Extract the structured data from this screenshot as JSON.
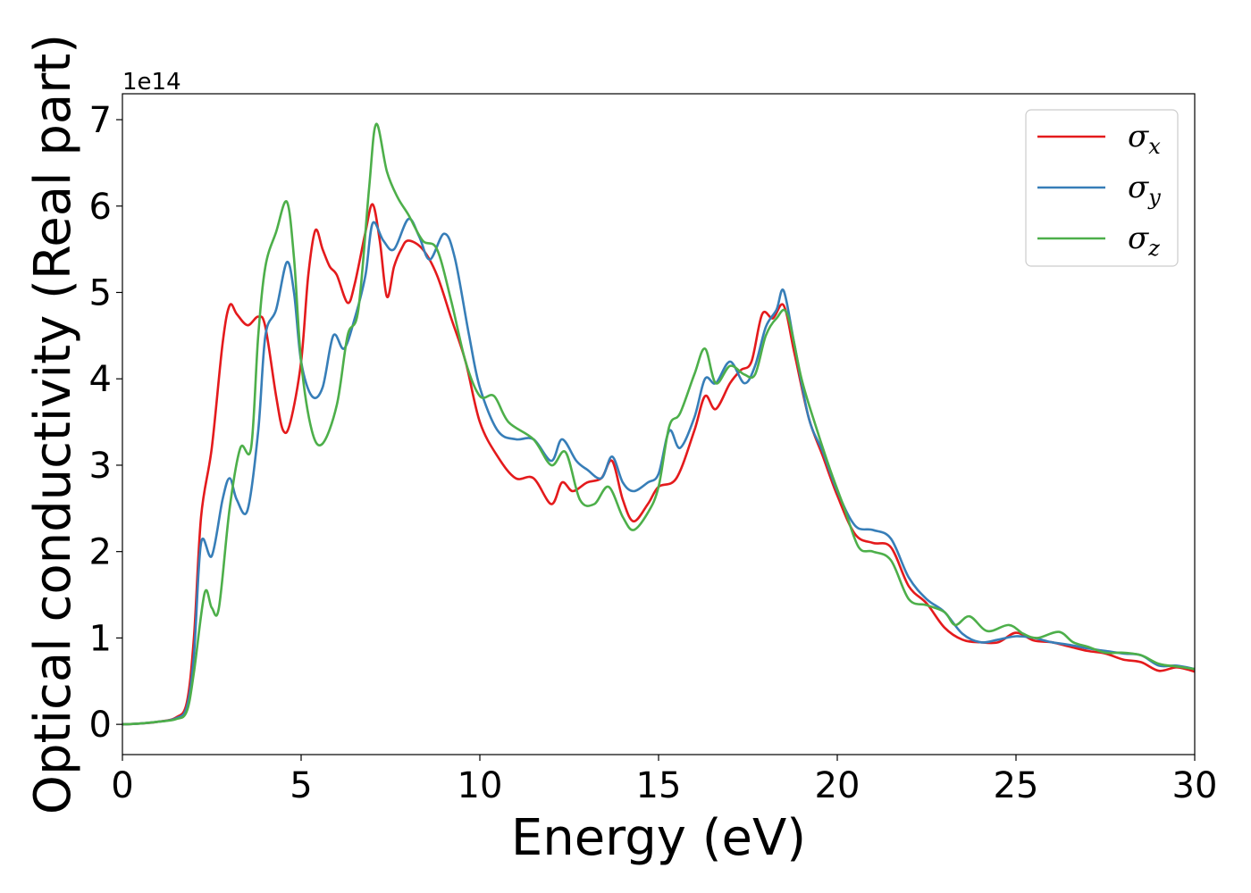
{
  "chart_data": {
    "type": "line",
    "title": "",
    "xlabel": "Energy (eV)",
    "ylabel": "Optical conductivity (Real part)",
    "y_offset_label": "1e14",
    "xlim": [
      0,
      30
    ],
    "ylim": [
      -0.35,
      7.3
    ],
    "x_ticks": [
      0,
      5,
      10,
      15,
      20,
      25,
      30
    ],
    "y_ticks": [
      0,
      1,
      2,
      3,
      4,
      5,
      6,
      7
    ],
    "grid": false,
    "legend_position": "top-right",
    "series": [
      {
        "name": "σx",
        "symbol": "σ",
        "subscript": "x",
        "color": "#e41a1c",
        "points": [
          [
            0,
            0
          ],
          [
            0.5,
            0.01
          ],
          [
            1.0,
            0.03
          ],
          [
            1.5,
            0.08
          ],
          [
            1.8,
            0.25
          ],
          [
            2.0,
            1.0
          ],
          [
            2.2,
            2.4
          ],
          [
            2.5,
            3.2
          ],
          [
            2.8,
            4.4
          ],
          [
            3.0,
            4.85
          ],
          [
            3.2,
            4.75
          ],
          [
            3.5,
            4.62
          ],
          [
            3.8,
            4.72
          ],
          [
            4.0,
            4.6
          ],
          [
            4.3,
            3.8
          ],
          [
            4.5,
            3.4
          ],
          [
            4.7,
            3.5
          ],
          [
            5.0,
            4.2
          ],
          [
            5.2,
            5.2
          ],
          [
            5.4,
            5.72
          ],
          [
            5.6,
            5.5
          ],
          [
            5.8,
            5.3
          ],
          [
            6.0,
            5.2
          ],
          [
            6.3,
            4.88
          ],
          [
            6.5,
            5.1
          ],
          [
            6.8,
            5.7
          ],
          [
            7.0,
            6.02
          ],
          [
            7.2,
            5.6
          ],
          [
            7.4,
            4.95
          ],
          [
            7.6,
            5.3
          ],
          [
            7.8,
            5.5
          ],
          [
            8.0,
            5.6
          ],
          [
            8.4,
            5.5
          ],
          [
            8.8,
            5.2
          ],
          [
            9.2,
            4.7
          ],
          [
            9.6,
            4.2
          ],
          [
            10.0,
            3.5
          ],
          [
            10.5,
            3.1
          ],
          [
            11.0,
            2.85
          ],
          [
            11.5,
            2.85
          ],
          [
            12.0,
            2.55
          ],
          [
            12.3,
            2.8
          ],
          [
            12.6,
            2.7
          ],
          [
            13.0,
            2.8
          ],
          [
            13.4,
            2.85
          ],
          [
            13.7,
            3.05
          ],
          [
            14.0,
            2.6
          ],
          [
            14.3,
            2.35
          ],
          [
            14.7,
            2.55
          ],
          [
            15.0,
            2.75
          ],
          [
            15.5,
            2.85
          ],
          [
            16.0,
            3.4
          ],
          [
            16.3,
            3.8
          ],
          [
            16.6,
            3.65
          ],
          [
            17.0,
            3.95
          ],
          [
            17.3,
            4.1
          ],
          [
            17.6,
            4.2
          ],
          [
            17.9,
            4.75
          ],
          [
            18.2,
            4.7
          ],
          [
            18.5,
            4.85
          ],
          [
            18.8,
            4.3
          ],
          [
            19.2,
            3.55
          ],
          [
            19.6,
            3.1
          ],
          [
            20.0,
            2.65
          ],
          [
            20.5,
            2.2
          ],
          [
            21.0,
            2.1
          ],
          [
            21.5,
            2.05
          ],
          [
            22.0,
            1.6
          ],
          [
            22.5,
            1.4
          ],
          [
            23.0,
            1.12
          ],
          [
            23.5,
            0.98
          ],
          [
            24.0,
            0.95
          ],
          [
            24.5,
            0.95
          ],
          [
            25.0,
            1.06
          ],
          [
            25.5,
            0.97
          ],
          [
            26.0,
            0.95
          ],
          [
            26.5,
            0.9
          ],
          [
            27.0,
            0.85
          ],
          [
            27.5,
            0.82
          ],
          [
            28.0,
            0.75
          ],
          [
            28.5,
            0.72
          ],
          [
            29.0,
            0.62
          ],
          [
            29.5,
            0.66
          ],
          [
            30.0,
            0.61
          ]
        ]
      },
      {
        "name": "σy",
        "symbol": "σ",
        "subscript": "y",
        "color": "#377eb8",
        "points": [
          [
            0,
            0
          ],
          [
            0.5,
            0.01
          ],
          [
            1.0,
            0.03
          ],
          [
            1.5,
            0.07
          ],
          [
            1.8,
            0.2
          ],
          [
            2.0,
            0.8
          ],
          [
            2.2,
            2.1
          ],
          [
            2.5,
            1.95
          ],
          [
            2.8,
            2.6
          ],
          [
            3.0,
            2.85
          ],
          [
            3.2,
            2.6
          ],
          [
            3.5,
            2.48
          ],
          [
            3.8,
            3.4
          ],
          [
            4.0,
            4.5
          ],
          [
            4.3,
            4.8
          ],
          [
            4.6,
            5.35
          ],
          [
            4.8,
            5.0
          ],
          [
            5.0,
            4.2
          ],
          [
            5.3,
            3.8
          ],
          [
            5.6,
            3.9
          ],
          [
            5.9,
            4.5
          ],
          [
            6.2,
            4.35
          ],
          [
            6.5,
            4.7
          ],
          [
            6.8,
            5.2
          ],
          [
            7.0,
            5.8
          ],
          [
            7.3,
            5.6
          ],
          [
            7.6,
            5.5
          ],
          [
            8.0,
            5.85
          ],
          [
            8.3,
            5.65
          ],
          [
            8.6,
            5.38
          ],
          [
            9.0,
            5.68
          ],
          [
            9.3,
            5.4
          ],
          [
            9.7,
            4.5
          ],
          [
            10.0,
            3.9
          ],
          [
            10.5,
            3.4
          ],
          [
            11.0,
            3.3
          ],
          [
            11.5,
            3.3
          ],
          [
            12.0,
            3.05
          ],
          [
            12.3,
            3.3
          ],
          [
            12.7,
            3.05
          ],
          [
            13.0,
            2.95
          ],
          [
            13.4,
            2.85
          ],
          [
            13.7,
            3.1
          ],
          [
            14.0,
            2.8
          ],
          [
            14.3,
            2.7
          ],
          [
            14.7,
            2.8
          ],
          [
            15.0,
            2.9
          ],
          [
            15.3,
            3.4
          ],
          [
            15.6,
            3.2
          ],
          [
            16.0,
            3.55
          ],
          [
            16.3,
            4.0
          ],
          [
            16.6,
            3.95
          ],
          [
            17.0,
            4.2
          ],
          [
            17.4,
            3.95
          ],
          [
            17.7,
            4.15
          ],
          [
            18.0,
            4.6
          ],
          [
            18.3,
            4.8
          ],
          [
            18.5,
            5.02
          ],
          [
            18.8,
            4.4
          ],
          [
            19.2,
            3.55
          ],
          [
            19.6,
            3.15
          ],
          [
            20.0,
            2.7
          ],
          [
            20.5,
            2.3
          ],
          [
            21.0,
            2.25
          ],
          [
            21.5,
            2.15
          ],
          [
            22.0,
            1.7
          ],
          [
            22.5,
            1.45
          ],
          [
            23.0,
            1.3
          ],
          [
            23.5,
            1.05
          ],
          [
            24.0,
            0.95
          ],
          [
            24.5,
            0.98
          ],
          [
            25.0,
            1.02
          ],
          [
            25.5,
            1.0
          ],
          [
            26.0,
            0.95
          ],
          [
            26.5,
            0.92
          ],
          [
            27.0,
            0.88
          ],
          [
            27.5,
            0.85
          ],
          [
            28.0,
            0.82
          ],
          [
            28.5,
            0.8
          ],
          [
            29.0,
            0.68
          ],
          [
            29.5,
            0.68
          ],
          [
            30.0,
            0.64
          ]
        ]
      },
      {
        "name": "σz",
        "symbol": "σ",
        "subscript": "z",
        "color": "#4daf4a",
        "points": [
          [
            0,
            0
          ],
          [
            0.5,
            0.01
          ],
          [
            1.0,
            0.03
          ],
          [
            1.5,
            0.06
          ],
          [
            1.8,
            0.15
          ],
          [
            2.0,
            0.6
          ],
          [
            2.3,
            1.52
          ],
          [
            2.5,
            1.35
          ],
          [
            2.7,
            1.35
          ],
          [
            3.0,
            2.5
          ],
          [
            3.3,
            3.2
          ],
          [
            3.6,
            3.2
          ],
          [
            3.8,
            4.5
          ],
          [
            4.0,
            5.3
          ],
          [
            4.3,
            5.7
          ],
          [
            4.6,
            6.05
          ],
          [
            4.8,
            5.4
          ],
          [
            5.0,
            4.2
          ],
          [
            5.3,
            3.4
          ],
          [
            5.6,
            3.25
          ],
          [
            6.0,
            3.7
          ],
          [
            6.3,
            4.5
          ],
          [
            6.6,
            4.8
          ],
          [
            6.9,
            6.2
          ],
          [
            7.1,
            6.95
          ],
          [
            7.4,
            6.4
          ],
          [
            7.7,
            6.1
          ],
          [
            8.0,
            5.9
          ],
          [
            8.4,
            5.6
          ],
          [
            8.8,
            5.5
          ],
          [
            9.2,
            4.9
          ],
          [
            9.6,
            4.2
          ],
          [
            10.0,
            3.8
          ],
          [
            10.4,
            3.8
          ],
          [
            10.8,
            3.5
          ],
          [
            11.5,
            3.3
          ],
          [
            12.0,
            3.0
          ],
          [
            12.4,
            3.15
          ],
          [
            12.8,
            2.6
          ],
          [
            13.2,
            2.55
          ],
          [
            13.6,
            2.75
          ],
          [
            14.0,
            2.4
          ],
          [
            14.3,
            2.25
          ],
          [
            14.7,
            2.45
          ],
          [
            15.0,
            2.75
          ],
          [
            15.3,
            3.45
          ],
          [
            15.6,
            3.6
          ],
          [
            16.0,
            4.05
          ],
          [
            16.3,
            4.35
          ],
          [
            16.6,
            3.95
          ],
          [
            17.0,
            4.15
          ],
          [
            17.4,
            4.05
          ],
          [
            17.7,
            4.05
          ],
          [
            18.0,
            4.5
          ],
          [
            18.3,
            4.7
          ],
          [
            18.6,
            4.75
          ],
          [
            19.0,
            4.0
          ],
          [
            19.4,
            3.45
          ],
          [
            19.8,
            2.95
          ],
          [
            20.2,
            2.5
          ],
          [
            20.6,
            2.05
          ],
          [
            21.0,
            2.0
          ],
          [
            21.5,
            1.9
          ],
          [
            22.0,
            1.45
          ],
          [
            22.5,
            1.38
          ],
          [
            23.0,
            1.3
          ],
          [
            23.3,
            1.15
          ],
          [
            23.7,
            1.25
          ],
          [
            24.2,
            1.08
          ],
          [
            24.8,
            1.15
          ],
          [
            25.2,
            1.05
          ],
          [
            25.6,
            1.0
          ],
          [
            26.2,
            1.07
          ],
          [
            26.6,
            0.95
          ],
          [
            27.0,
            0.9
          ],
          [
            27.5,
            0.83
          ],
          [
            28.0,
            0.83
          ],
          [
            28.5,
            0.8
          ],
          [
            29.0,
            0.7
          ],
          [
            29.5,
            0.67
          ],
          [
            30.0,
            0.64
          ]
        ]
      }
    ]
  }
}
